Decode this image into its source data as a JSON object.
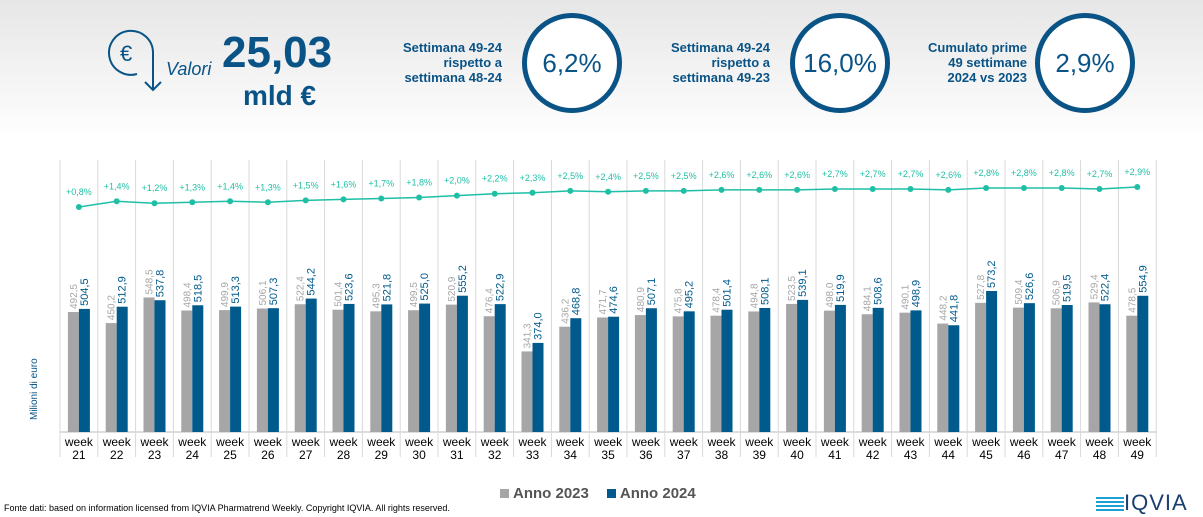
{
  "header": {
    "valori_label": "Valori",
    "total_value": "25,03",
    "total_unit": "mld €",
    "kpis": [
      {
        "label_lines": [
          "Settimana 49-24",
          "rispetto a",
          "settimana 48-24"
        ],
        "value": "6,2%"
      },
      {
        "label_lines": [
          "Settimana 49-24",
          "rispetto a",
          "settimana 49-23"
        ],
        "value": "16,0%"
      },
      {
        "label_lines": [
          "Cumulato prime",
          "49 settimane",
          "2024 vs 2023"
        ],
        "value": "2,9%"
      }
    ]
  },
  "colors": {
    "brand": "#0a5386",
    "series_2023": "#a6a6a6",
    "series_2024": "#005a8c",
    "cumulative_line": "#1fbfa5"
  },
  "chart_data": {
    "type": "bar",
    "ylabel": "Milioni di euro",
    "categories": [
      "week 21",
      "week 22",
      "week 23",
      "week 24",
      "week 25",
      "week 26",
      "week 27",
      "week 28",
      "week 29",
      "week 30",
      "week 31",
      "week 32",
      "week 33",
      "week 34",
      "week 35",
      "week 36",
      "week 37",
      "week 38",
      "week 39",
      "week 40",
      "week 41",
      "week 42",
      "week 43",
      "week 44",
      "week 45",
      "week 46",
      "week 47",
      "week 48",
      "week 49"
    ],
    "series": [
      {
        "name": "Anno 2023",
        "values": [
          492.5,
          450.2,
          548.5,
          498.4,
          499.9,
          506.1,
          522.4,
          501.4,
          495.3,
          499.5,
          520.9,
          476.4,
          341.3,
          436.2,
          471.7,
          480.9,
          475.8,
          478.4,
          494.8,
          523.5,
          498.0,
          484.1,
          490.1,
          448.2,
          527.8,
          509.4,
          506.9,
          529.4,
          478.5
        ]
      },
      {
        "name": "Anno 2024",
        "values": [
          504.5,
          512.9,
          537.8,
          518.5,
          513.3,
          507.3,
          544.2,
          523.6,
          521.8,
          525.0,
          555.2,
          522.9,
          374.0,
          468.8,
          474.6,
          507.1,
          495.2,
          501.4,
          508.1,
          539.1,
          519.9,
          508.6,
          498.9,
          441.8,
          573.2,
          526.6,
          519.5,
          522.4,
          554.9
        ]
      }
    ],
    "cumulative_growth_pct": [
      0.8,
      1.4,
      1.2,
      1.3,
      1.4,
      1.3,
      1.5,
      1.6,
      1.7,
      1.8,
      2.0,
      2.2,
      2.3,
      2.5,
      2.4,
      2.5,
      2.5,
      2.6,
      2.6,
      2.6,
      2.7,
      2.7,
      2.7,
      2.6,
      2.8,
      2.8,
      2.8,
      2.7,
      2.9
    ],
    "legend": "bottom",
    "grid": false
  },
  "footer": {
    "source": "Fonte dati: based on information licensed from IQVIA Pharmatrend Weekly. Copyright IQVIA. All rights reserved.",
    "logo": "IQVIA"
  }
}
